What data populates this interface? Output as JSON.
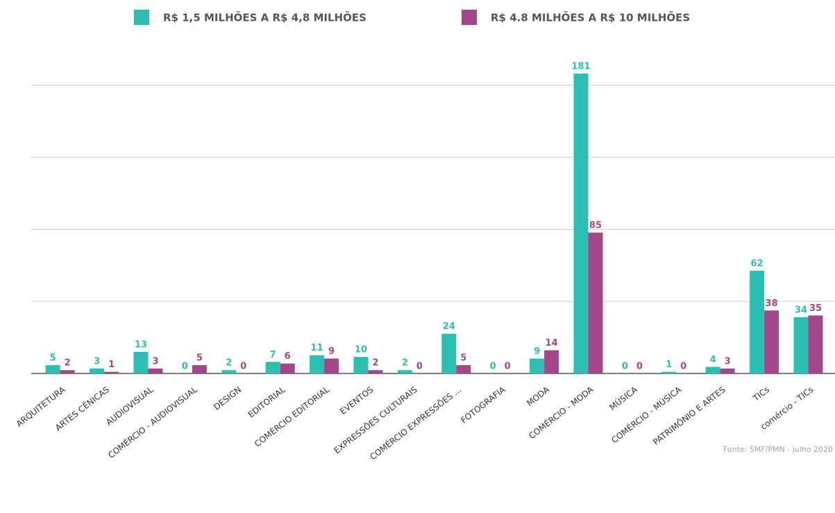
{
  "chart_data": {
    "type": "bar",
    "categories": [
      "ARQUITETURA",
      "ARTES CÊNICAS",
      "AUDIOVISUAL",
      "COMÉRCIO - AUDIOVISUAL",
      "DESIGN",
      "EDITORIAL",
      "COMÉRCIO EDITORIAL",
      "EVENTOS",
      "EXPRESSÕES CULTURAIS",
      "COMÉRCIO EXPRESSÕES ...",
      "FOTOGRAFIA",
      "MODA",
      "COMÉRCIO - MODA",
      "MÚSICA",
      "COMÉRCIO - MÚSICA",
      "PATRIMÔNIO E ARTES",
      "TICs",
      "comércio - TICs"
    ],
    "series": [
      {
        "name": "R$ 1,5 MILHÕES A R$ 4,8 MILHÕES",
        "color": "#2bbfb3",
        "values": [
          5,
          3,
          13,
          0,
          2,
          7,
          11,
          10,
          2,
          24,
          0,
          9,
          181,
          0,
          1,
          4,
          62,
          34
        ]
      },
      {
        "name": "R$ 4.8 MILHÕES A R$ 10 MILHÕES",
        "color": "#a3478a",
        "values": [
          2,
          1,
          3,
          5,
          0,
          6,
          9,
          2,
          0,
          5,
          0,
          14,
          85,
          0,
          0,
          3,
          38,
          35
        ]
      }
    ],
    "ylim": [
      0,
      190
    ],
    "yticks": [
      0,
      43.5,
      87,
      130.5,
      174
    ],
    "grid": true,
    "legend": "top",
    "source": "Fonte: SMF/PMN - julho 2020"
  }
}
